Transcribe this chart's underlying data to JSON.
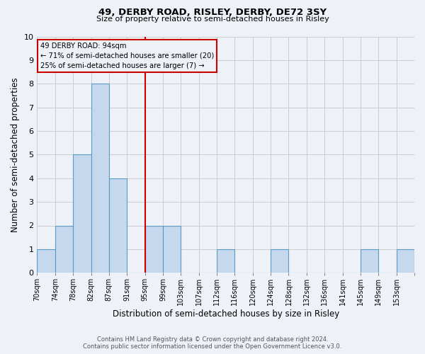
{
  "title1": "49, DERBY ROAD, RISLEY, DERBY, DE72 3SY",
  "title2": "Size of property relative to semi-detached houses in Risley",
  "xlabel": "Distribution of semi-detached houses by size in Risley",
  "ylabel": "Number of semi-detached properties",
  "bin_labels": [
    "70sqm",
    "74sqm",
    "78sqm",
    "82sqm",
    "87sqm",
    "91sqm",
    "95sqm",
    "99sqm",
    "103sqm",
    "107sqm",
    "112sqm",
    "116sqm",
    "120sqm",
    "124sqm",
    "128sqm",
    "132sqm",
    "136sqm",
    "141sqm",
    "145sqm",
    "149sqm",
    "153sqm"
  ],
  "bar_values": [
    1,
    2,
    5,
    8,
    4,
    0,
    2,
    2,
    0,
    0,
    1,
    0,
    0,
    1,
    0,
    0,
    0,
    0,
    1,
    0,
    1
  ],
  "bar_color": "#c5d8ed",
  "bar_edge_color": "#5a9bc4",
  "vline_index": 6,
  "vline_color": "#cc0000",
  "vline_label_title": "49 DERBY ROAD: 94sqm",
  "vline_label_line1": "← 71% of semi-detached houses are smaller (20)",
  "vline_label_line2": "25% of semi-detached houses are larger (7) →",
  "annotation_box_color": "#cc0000",
  "ylim": [
    0,
    10
  ],
  "yticks": [
    0,
    1,
    2,
    3,
    4,
    5,
    6,
    7,
    8,
    9,
    10
  ],
  "footer1": "Contains HM Land Registry data © Crown copyright and database right 2024.",
  "footer2": "Contains public sector information licensed under the Open Government Licence v3.0.",
  "grid_color": "#cccccc",
  "bg_color": "#eef2f8"
}
